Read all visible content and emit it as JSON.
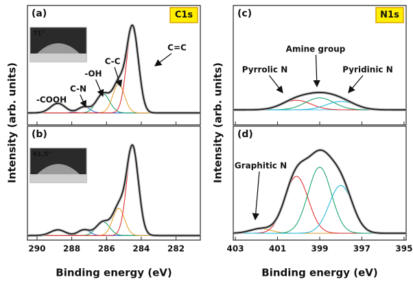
{
  "chart_data": [
    {
      "type": "peak-fit",
      "label": "(a)",
      "badge": "C1s",
      "inset_label": "71°",
      "ylabel": "Intensity (arb. units)",
      "xlim": [
        290.55,
        280.6
      ],
      "ylim": [
        0,
        100
      ],
      "baseline": 10,
      "series": [
        {
          "color": "#9b4fb0",
          "center": 288.8,
          "height": 8,
          "width": 1.0
        },
        {
          "color": "#3a6fd8",
          "center": 287.3,
          "height": 5,
          "width": 0.8
        },
        {
          "color": "#1aa36b",
          "center": 286.2,
          "height": 16,
          "width": 0.9
        },
        {
          "color": "#e8a030",
          "center": 285.3,
          "height": 24,
          "width": 0.8
        },
        {
          "color": "#e03030",
          "center": 284.5,
          "height": 72,
          "width": 0.8
        }
      ],
      "annotations": [
        "-COOH",
        "C-N",
        "-OH",
        "C-C",
        "C=C"
      ]
    },
    {
      "type": "peak-fit",
      "label": "(b)",
      "inset_label": "61.5°",
      "xlabel": "Binding energy (eV)",
      "xlim": [
        290.55,
        280.6
      ],
      "ylim": [
        0,
        100
      ],
      "baseline": 4,
      "xticks": [
        290,
        288,
        286,
        284,
        282
      ],
      "series": [
        {
          "color": "#9b4fb0",
          "center": 288.8,
          "height": 5,
          "width": 1.0
        },
        {
          "color": "#3a6fd8",
          "center": 287.3,
          "height": 5,
          "width": 0.8
        },
        {
          "color": "#1aa36b",
          "center": 286.2,
          "height": 12,
          "width": 0.9
        },
        {
          "color": "#e8a030",
          "center": 285.3,
          "height": 24,
          "width": 0.8
        },
        {
          "color": "#e03030",
          "center": 284.5,
          "height": 78,
          "width": 0.8
        }
      ]
    },
    {
      "type": "peak-fit",
      "label": "(c)",
      "badge": "N1s",
      "ylabel": "Intensity (arb. units)",
      "xlim": [
        403.1,
        394.9
      ],
      "ylim": [
        0,
        100
      ],
      "baseline": 12.6,
      "series": [
        {
          "color": "#e03030",
          "center": 400.1,
          "height": 8,
          "width": 1.6
        },
        {
          "color": "#1aa36b",
          "center": 399,
          "height": 10,
          "width": 1.6
        },
        {
          "color": "#22b8d8",
          "center": 398,
          "height": 7,
          "width": 1.6
        }
      ],
      "annotations": [
        "Pyrrolic N",
        "Amine group",
        "Pyridinic N"
      ]
    },
    {
      "type": "peak-fit",
      "label": "(d)",
      "xlabel": "Binding energy (eV)",
      "xlim": [
        403.1,
        394.9
      ],
      "ylim": [
        0,
        100
      ],
      "baseline": 6,
      "xticks": [
        403,
        401,
        399,
        397,
        395
      ],
      "series": [
        {
          "color": "#e8a030",
          "center": 401.8,
          "height": 4,
          "width": 1.2
        },
        {
          "color": "#e03030",
          "center": 400.1,
          "height": 50,
          "width": 1.3
        },
        {
          "color": "#1aa36b",
          "center": 399,
          "height": 58,
          "width": 1.3
        },
        {
          "color": "#22b8d8",
          "center": 398,
          "height": 42,
          "width": 1.3
        }
      ],
      "annotations": [
        "Graphitic N"
      ]
    }
  ]
}
